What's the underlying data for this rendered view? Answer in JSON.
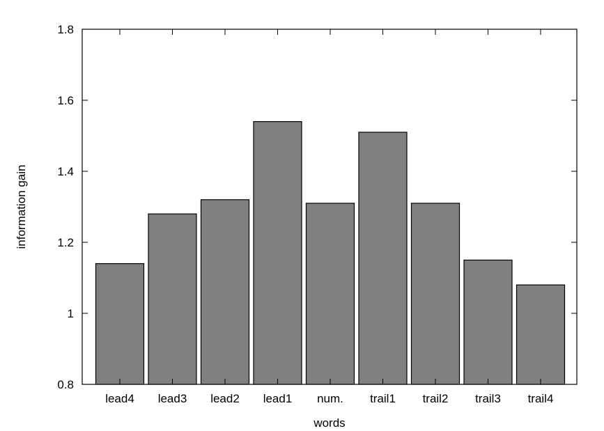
{
  "chart_data": {
    "type": "bar",
    "categories": [
      "lead4",
      "lead3",
      "lead2",
      "lead1",
      "num.",
      "trail1",
      "trail2",
      "trail3",
      "trail4"
    ],
    "values": [
      1.14,
      1.28,
      1.32,
      1.54,
      1.31,
      1.51,
      1.31,
      1.15,
      1.08
    ],
    "title": "",
    "xlabel": "words",
    "ylabel": "information gain",
    "ylim": [
      0.8,
      1.8
    ],
    "yticks": [
      0.8,
      1,
      1.2,
      1.4,
      1.6,
      1.8
    ],
    "ytick_labels": [
      "0.8",
      "1",
      "1.2",
      "1.4",
      "1.6",
      "1.8"
    ],
    "grid": false,
    "legend": "none",
    "colors": {
      "bar_fill": "#808080",
      "bar_stroke": "#000000",
      "axis": "#000000"
    }
  }
}
